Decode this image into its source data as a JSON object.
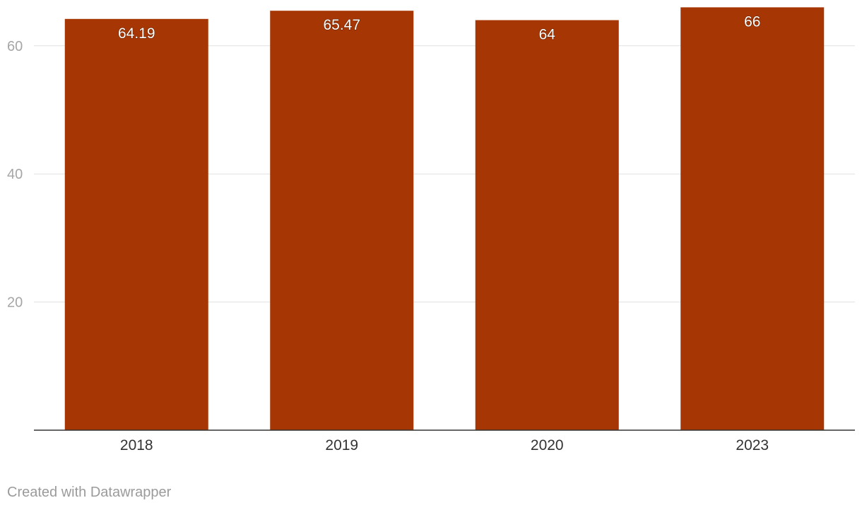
{
  "chart_data": {
    "type": "bar",
    "categories": [
      "2018",
      "2019",
      "2020",
      "2023"
    ],
    "values": [
      64.19,
      65.47,
      64,
      66
    ],
    "data_labels": [
      "64.19",
      "65.47",
      "64",
      "66"
    ],
    "title": "",
    "xlabel": "",
    "ylabel": "",
    "ylim": [
      0,
      66
    ],
    "yticks": [
      20,
      40,
      60
    ],
    "grid": true,
    "bar_color": "#a63603"
  },
  "footer": {
    "credit": "Created with Datawrapper"
  }
}
